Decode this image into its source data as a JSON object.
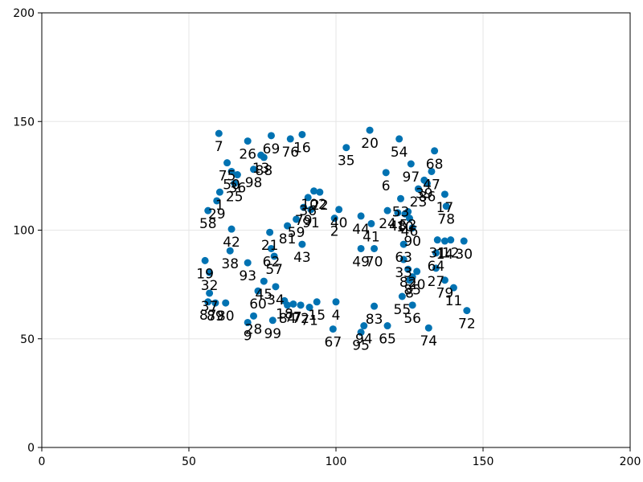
{
  "chart_data": {
    "type": "scatter",
    "title": "",
    "xlabel": "",
    "ylabel": "",
    "xlim": [
      0,
      200
    ],
    "ylim": [
      0,
      200
    ],
    "xticks": [
      0,
      50,
      100,
      150,
      200
    ],
    "yticks": [
      0,
      50,
      100,
      150,
      200
    ],
    "grid": true,
    "marker_color": "#0072B2",
    "label_color": "#000000",
    "points": [
      {
        "label": "7",
        "x": 60.2,
        "y": 144.5
      },
      {
        "label": "26",
        "x": 70.0,
        "y": 141.0
      },
      {
        "label": "69",
        "x": 78.0,
        "y": 143.5
      },
      {
        "label": "76",
        "x": 84.5,
        "y": 142.0
      },
      {
        "label": "16",
        "x": 88.5,
        "y": 144.0
      },
      {
        "label": "20",
        "x": 111.5,
        "y": 146.0
      },
      {
        "label": "54",
        "x": 121.5,
        "y": 142.0
      },
      {
        "label": "35",
        "x": 103.5,
        "y": 138.0
      },
      {
        "label": "68",
        "x": 133.5,
        "y": 136.5
      },
      {
        "label": "75",
        "x": 63.0,
        "y": 131.0
      },
      {
        "label": "13",
        "x": 74.5,
        "y": 134.5
      },
      {
        "label": "88",
        "x": 75.5,
        "y": 133.5
      },
      {
        "label": "98",
        "x": 72.0,
        "y": 128.0
      },
      {
        "label": "50",
        "x": 64.5,
        "y": 127.0
      },
      {
        "label": "36",
        "x": 66.5,
        "y": 125.5
      },
      {
        "label": "25",
        "x": 65.5,
        "y": 121.5
      },
      {
        "label": "1",
        "x": 60.5,
        "y": 117.5
      },
      {
        "label": "29",
        "x": 59.5,
        "y": 113.5
      },
      {
        "label": "58",
        "x": 56.5,
        "y": 109.0
      },
      {
        "label": "6",
        "x": 117.0,
        "y": 126.5
      },
      {
        "label": "97",
        "x": 125.5,
        "y": 130.5
      },
      {
        "label": "47",
        "x": 132.5,
        "y": 127.0
      },
      {
        "label": "39",
        "x": 130.0,
        "y": 123.0
      },
      {
        "label": "86",
        "x": 131.0,
        "y": 121.5
      },
      {
        "label": "23",
        "x": 128.0,
        "y": 119.0
      },
      {
        "label": "17",
        "x": 137.0,
        "y": 116.5
      },
      {
        "label": "78",
        "x": 137.5,
        "y": 111.0
      },
      {
        "label": "102",
        "x": 92.5,
        "y": 118.0
      },
      {
        "label": "22",
        "x": 94.5,
        "y": 117.5
      },
      {
        "label": "36",
        "x": 90.5,
        "y": 115.0
      },
      {
        "label": "91",
        "x": 91.5,
        "y": 109.5
      },
      {
        "label": "79",
        "x": 89.0,
        "y": 110.5
      },
      {
        "label": "2",
        "x": 99.5,
        "y": 105.5
      },
      {
        "label": "40",
        "x": 101.0,
        "y": 109.5
      },
      {
        "label": "59",
        "x": 86.5,
        "y": 105.0
      },
      {
        "label": "81",
        "x": 83.5,
        "y": 102.0
      },
      {
        "label": "44",
        "x": 108.5,
        "y": 106.5
      },
      {
        "label": "41",
        "x": 112.0,
        "y": 103.0
      },
      {
        "label": "53",
        "x": 122.0,
        "y": 114.5
      },
      {
        "label": "24",
        "x": 117.5,
        "y": 109.0
      },
      {
        "label": "48",
        "x": 121.0,
        "y": 108.0
      },
      {
        "label": "10",
        "x": 123.5,
        "y": 107.5
      },
      {
        "label": "52",
        "x": 124.5,
        "y": 108.5
      },
      {
        "label": "46",
        "x": 125.0,
        "y": 105.5
      },
      {
        "label": "90",
        "x": 126.0,
        "y": 101.0
      },
      {
        "label": "42",
        "x": 64.5,
        "y": 100.5
      },
      {
        "label": "21",
        "x": 77.5,
        "y": 99.0
      },
      {
        "label": "38",
        "x": 64.0,
        "y": 90.5
      },
      {
        "label": "62",
        "x": 78.0,
        "y": 91.5
      },
      {
        "label": "57",
        "x": 79.0,
        "y": 88.0
      },
      {
        "label": "93",
        "x": 70.0,
        "y": 85.0
      },
      {
        "label": "43",
        "x": 88.5,
        "y": 93.5
      },
      {
        "label": "49",
        "x": 108.5,
        "y": 91.5
      },
      {
        "label": "70",
        "x": 113.0,
        "y": 91.5
      },
      {
        "label": "63",
        "x": 123.0,
        "y": 93.5
      },
      {
        "label": "33",
        "x": 123.0,
        "y": 86.5
      },
      {
        "label": "31",
        "x": 134.5,
        "y": 95.5
      },
      {
        "label": "14",
        "x": 137.0,
        "y": 95.0
      },
      {
        "label": "12",
        "x": 139.0,
        "y": 95.5
      },
      {
        "label": "30",
        "x": 143.5,
        "y": 95.0
      },
      {
        "label": "64",
        "x": 134.0,
        "y": 89.5
      },
      {
        "label": "19",
        "x": 55.5,
        "y": 86.0
      },
      {
        "label": "32",
        "x": 57.0,
        "y": 80.5
      },
      {
        "label": "82",
        "x": 124.5,
        "y": 82.0
      },
      {
        "label": "20",
        "x": 127.5,
        "y": 81.0
      },
      {
        "label": "8",
        "x": 125.0,
        "y": 77.0
      },
      {
        "label": "85",
        "x": 126.0,
        "y": 78.5
      },
      {
        "label": "27",
        "x": 134.0,
        "y": 82.5
      },
      {
        "label": "79",
        "x": 137.0,
        "y": 77.0
      },
      {
        "label": "11",
        "x": 140.0,
        "y": 73.5
      },
      {
        "label": "45",
        "x": 75.5,
        "y": 76.5
      },
      {
        "label": "34",
        "x": 79.5,
        "y": 74.0
      },
      {
        "label": "60",
        "x": 73.5,
        "y": 72.0
      },
      {
        "label": "37",
        "x": 57.0,
        "y": 71.0
      },
      {
        "label": "87",
        "x": 56.5,
        "y": 67.0
      },
      {
        "label": "89",
        "x": 59.0,
        "y": 66.5
      },
      {
        "label": "80",
        "x": 62.5,
        "y": 66.5
      },
      {
        "label": "18",
        "x": 82.5,
        "y": 67.5
      },
      {
        "label": "84",
        "x": 83.5,
        "y": 65.5
      },
      {
        "label": "77",
        "x": 85.5,
        "y": 66.0
      },
      {
        "label": "72",
        "x": 88.0,
        "y": 65.5
      },
      {
        "label": "71",
        "x": 91.0,
        "y": 64.5
      },
      {
        "label": "15",
        "x": 93.5,
        "y": 67.0
      },
      {
        "label": "4",
        "x": 100.0,
        "y": 67.0
      },
      {
        "label": "83",
        "x": 113.0,
        "y": 65.0
      },
      {
        "label": "55",
        "x": 122.5,
        "y": 69.5
      },
      {
        "label": "56",
        "x": 126.0,
        "y": 65.5
      },
      {
        "label": "72",
        "x": 144.5,
        "y": 63.0
      },
      {
        "label": "28",
        "x": 72.0,
        "y": 60.5
      },
      {
        "label": "9",
        "x": 70.0,
        "y": 57.5
      },
      {
        "label": "99",
        "x": 78.5,
        "y": 58.5
      },
      {
        "label": "67",
        "x": 99.0,
        "y": 54.5
      },
      {
        "label": "94",
        "x": 109.5,
        "y": 56.0
      },
      {
        "label": "95",
        "x": 108.5,
        "y": 53.0
      },
      {
        "label": "65",
        "x": 117.5,
        "y": 56.0
      },
      {
        "label": "74",
        "x": 131.5,
        "y": 55.0
      }
    ]
  }
}
